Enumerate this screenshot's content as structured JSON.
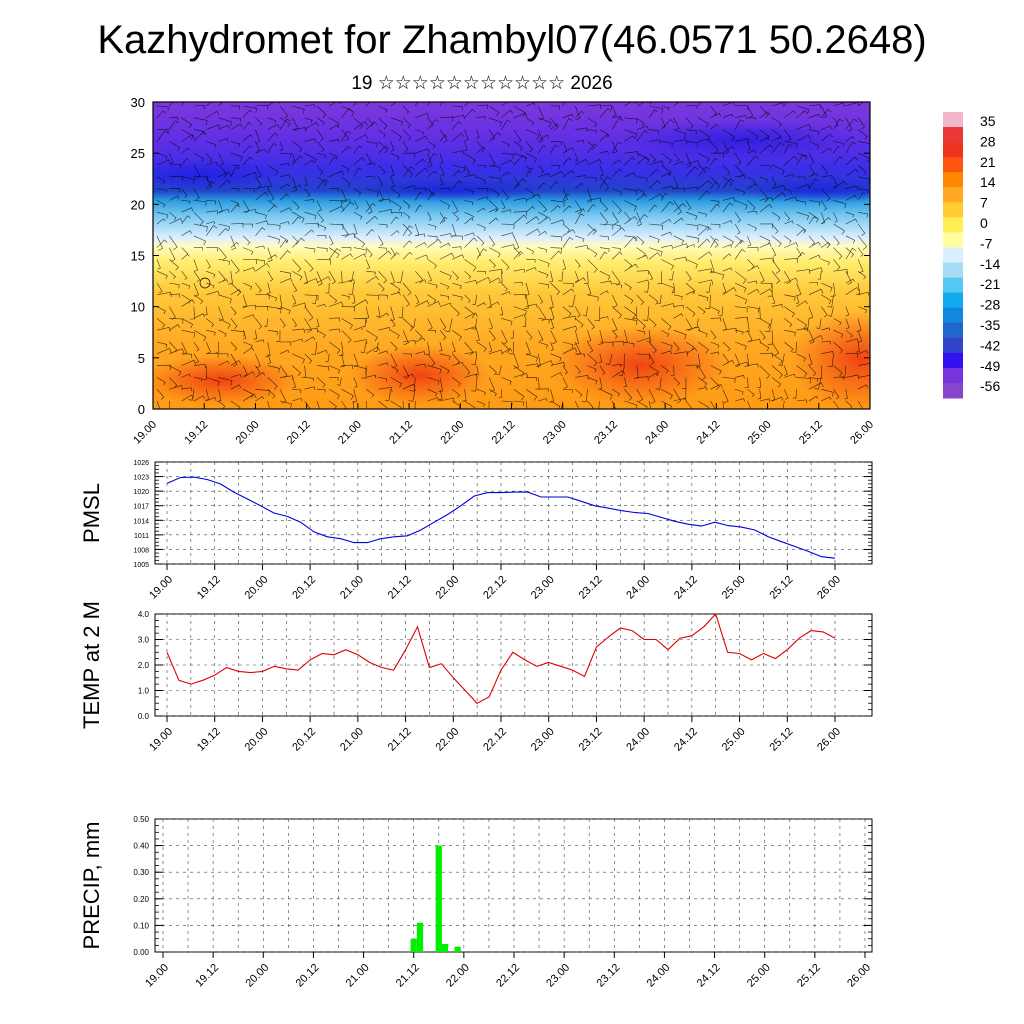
{
  "header": {
    "title": "Kazhydromet for Zhambyl07(46.0571 50.2648)",
    "subtitle": "19 ☆☆☆☆☆☆☆☆☆☆☆ 2026"
  },
  "colors": {
    "pmsl_line": "#0000dd",
    "temp_line": "#dd0000",
    "precip_bar": "#00ee00",
    "colorbar": [
      "#f0b8c8",
      "#e83838",
      "#ee3322",
      "#ff5511",
      "#ff8800",
      "#ffaa22",
      "#ffcc33",
      "#ffee55",
      "#ffffa0",
      "#d8f0ff",
      "#a8dcf5",
      "#55c8f5",
      "#11aaee",
      "#1188dd",
      "#2266cc",
      "#3344cc",
      "#3311ee",
      "#7733dd",
      "#8844cc"
    ]
  },
  "chart_data": [
    {
      "id": "cross_section",
      "type": "heatmap",
      "title": "",
      "ylim": [
        0,
        30
      ],
      "yticks": [
        "0",
        "5",
        "10",
        "15",
        "20",
        "25",
        "30"
      ],
      "x_ticklabels": [
        "19.00",
        "19.12",
        "20.00",
        "20.12",
        "21.00",
        "21.12",
        "22.00",
        "22.12",
        "23.00",
        "23.12",
        "24.00",
        "24.12",
        "25.00",
        "25.12",
        "26.00"
      ],
      "colorbar_labels": [
        "35",
        "28",
        "21",
        "14",
        "7",
        "0",
        "-7",
        "-14",
        "-21",
        "-28",
        "-35",
        "-42",
        "-49",
        "-56"
      ]
    },
    {
      "id": "pmsl",
      "type": "line",
      "ylabel": "PMSL",
      "ylim": [
        1005,
        1026
      ],
      "ytick_labels": [
        "1005",
        "1008",
        "1011",
        "1014",
        "1017",
        "1020",
        "1023",
        "1026"
      ],
      "x_ticklabels": [
        "19.00",
        "19.12",
        "20.00",
        "20.12",
        "21.00",
        "21.12",
        "22.00",
        "22.12",
        "23.00",
        "23.12",
        "24.00",
        "24.12",
        "25.00",
        "25.12",
        "26.00"
      ],
      "values": [
        1021.6,
        1022.8,
        1022.9,
        1022.4,
        1021.5,
        1019.8,
        1018.4,
        1017.0,
        1015.5,
        1014.8,
        1013.6,
        1011.6,
        1010.6,
        1010.2,
        1009.4,
        1009.4,
        1010.2,
        1010.6,
        1010.8,
        1012.0,
        1013.6,
        1015.2,
        1017.0,
        1019.0,
        1019.7,
        1019.7,
        1019.8,
        1019.8,
        1018.8,
        1018.8,
        1018.8,
        1017.9,
        1017.0,
        1016.5,
        1016.0,
        1015.6,
        1015.4,
        1014.6,
        1013.8,
        1013.2,
        1012.8,
        1013.6,
        1012.9,
        1012.6,
        1012.0,
        1010.6,
        1009.6,
        1008.6,
        1007.6,
        1006.5,
        1006.2
      ]
    },
    {
      "id": "temp",
      "type": "line",
      "ylabel": "TEMP at 2 M",
      "ylim": [
        0,
        4
      ],
      "ytick_labels": [
        "0.0",
        "1.0",
        "2.0",
        "3.0",
        "4.0"
      ],
      "x_ticklabels": [
        "19.00",
        "19.12",
        "20.00",
        "20.12",
        "21.00",
        "21.12",
        "22.00",
        "22.12",
        "23.00",
        "23.12",
        "24.00",
        "24.12",
        "25.00",
        "25.12",
        "26.00"
      ],
      "values": [
        2.5,
        1.4,
        1.25,
        1.4,
        1.6,
        1.9,
        1.75,
        1.7,
        1.75,
        1.95,
        1.85,
        1.8,
        2.2,
        2.45,
        2.4,
        2.6,
        2.4,
        2.1,
        1.9,
        1.8,
        2.6,
        3.5,
        1.9,
        2.05,
        1.5,
        1.0,
        0.5,
        0.75,
        1.8,
        2.5,
        2.2,
        1.95,
        2.1,
        1.95,
        1.8,
        1.55,
        2.7,
        3.1,
        3.45,
        3.35,
        3.0,
        3.0,
        2.6,
        3.05,
        3.15,
        3.5,
        4.0,
        2.5,
        2.45,
        2.2,
        2.45,
        2.25,
        2.6,
        3.05,
        3.35,
        3.3,
        3.05
      ]
    },
    {
      "id": "precip",
      "type": "bar",
      "ylabel": "PRECIP, mm",
      "ylim": [
        0,
        0.5
      ],
      "ytick_labels": [
        "0.00",
        "0.10",
        "0.20",
        "0.30",
        "0.40",
        "0.50"
      ],
      "x_ticklabels": [
        "19.00",
        "19.12",
        "20.00",
        "20.12",
        "21.00",
        "21.12",
        "22.00",
        "22.12",
        "23.00",
        "23.12",
        "24.00",
        "24.12",
        "25.00",
        "25.12",
        "26.00"
      ],
      "bars": [
        {
          "x_day": 5.0,
          "value": 0.05
        },
        {
          "x_day": 5.125,
          "value": 0.11
        },
        {
          "x_day": 5.5,
          "value": 0.4
        },
        {
          "x_day": 5.625,
          "value": 0.03
        },
        {
          "x_day": 5.875,
          "value": 0.02
        }
      ]
    }
  ]
}
